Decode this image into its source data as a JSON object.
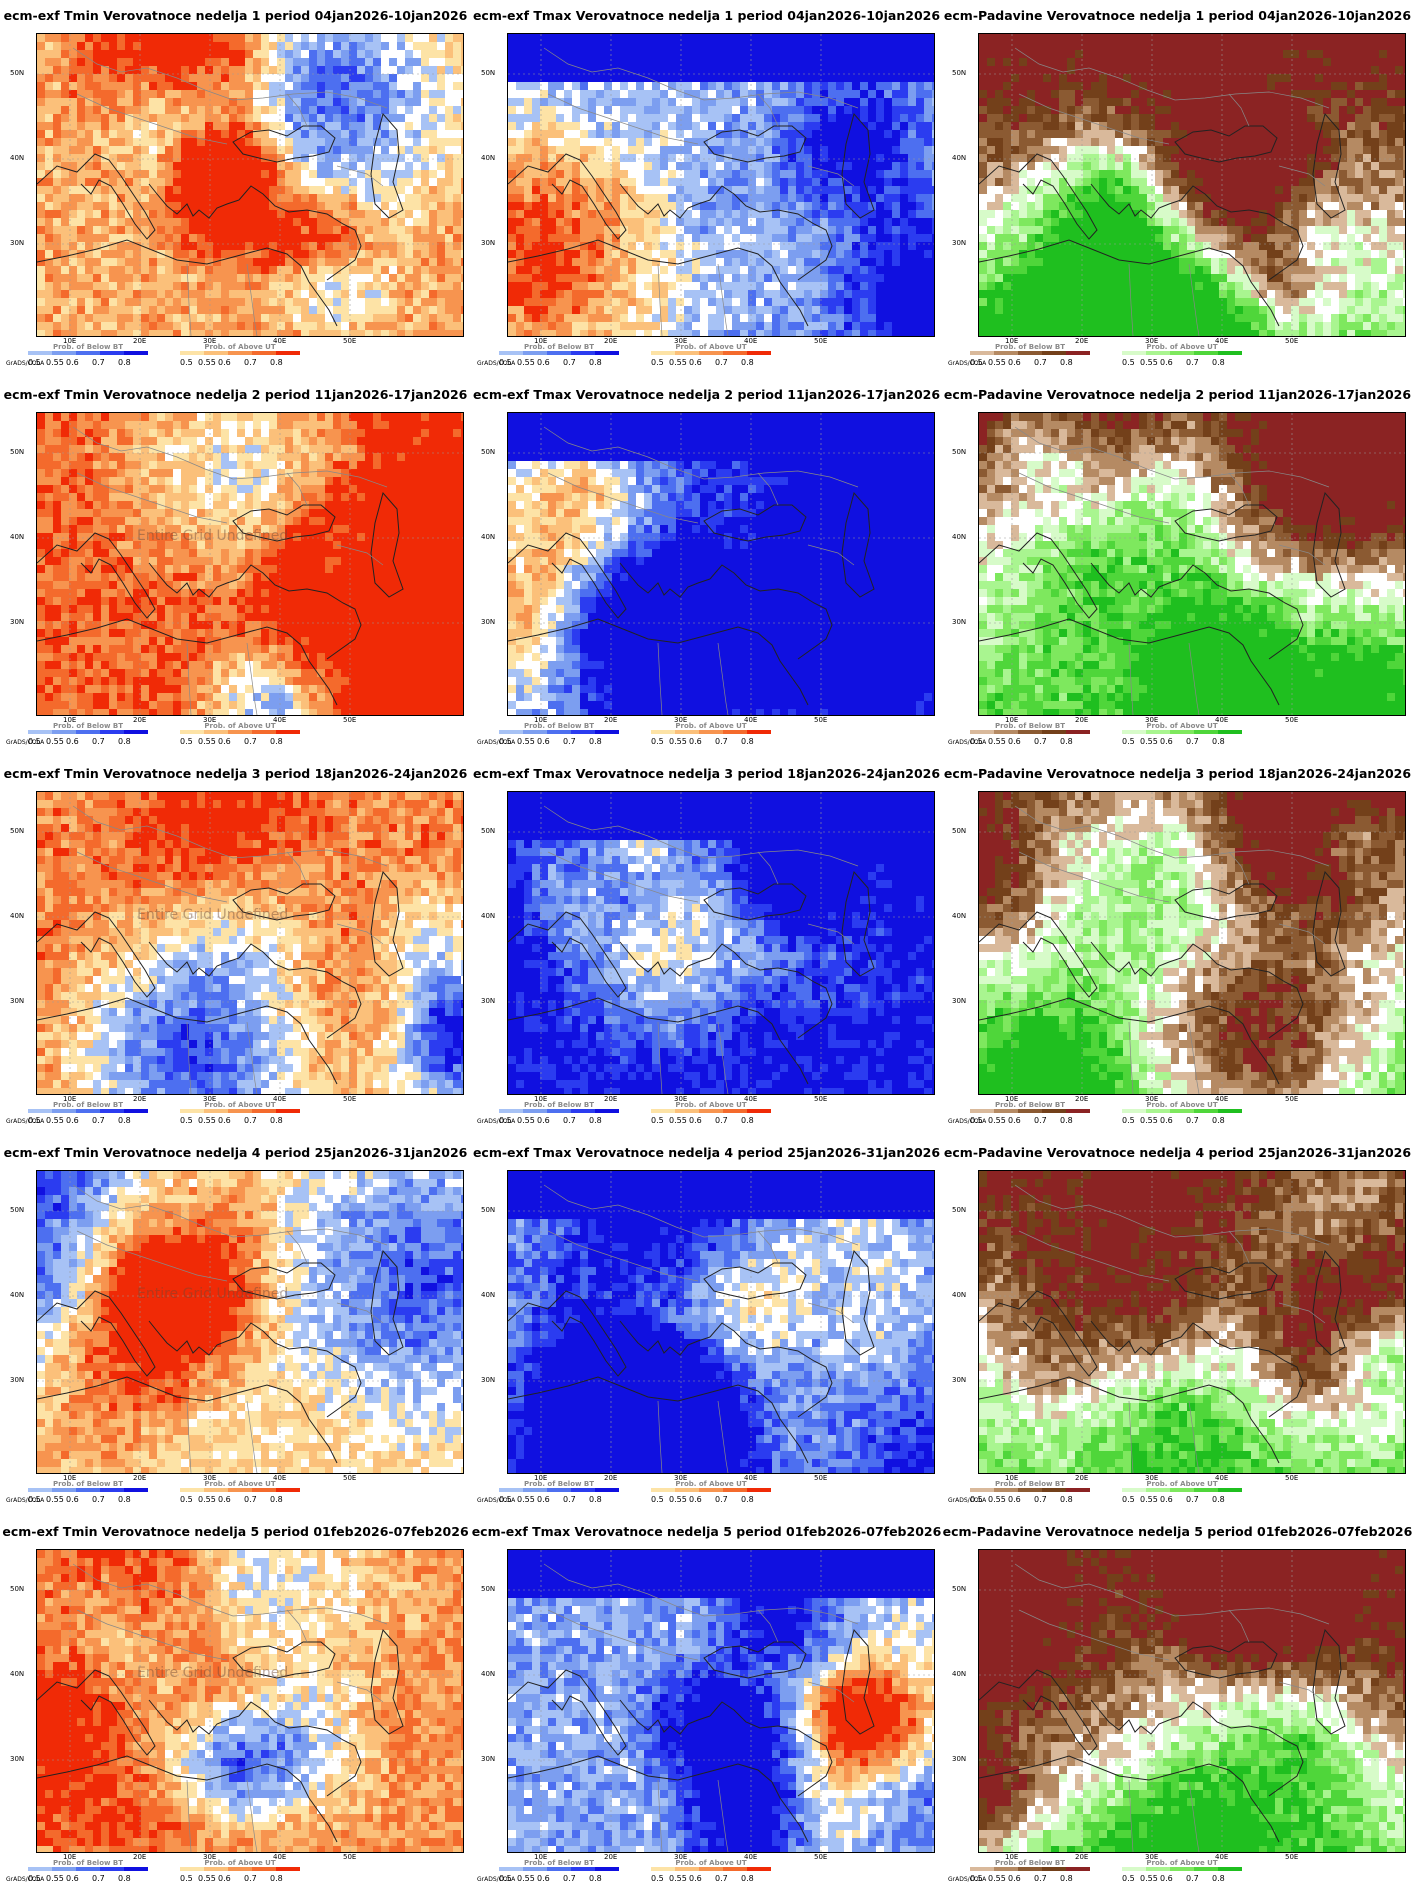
{
  "grid": {
    "rows": 5,
    "cols": 3
  },
  "undefined_note": "Entire Grid Undefined",
  "axes": {
    "lat_labels": [
      "50N",
      "40N",
      "30N"
    ],
    "lon_labels": [
      "10E",
      "20E",
      "30E",
      "40E",
      "50E"
    ]
  },
  "legend_common": {
    "credit": "GrADS/COLA",
    "ticks": [
      "0.5",
      "0.55",
      "0.6",
      "0.7",
      "0.8"
    ]
  },
  "variables": [
    {
      "key": "tmin",
      "prefix": "ecm-exf Tmin",
      "below_label": "Prob. of Below BT",
      "above_label": "Prob. of Above UT",
      "below_colors": [
        "#a7c2f5",
        "#7c9ef0",
        "#4d6ff0",
        "#2b3cf0",
        "#1010e0"
      ],
      "above_colors": [
        "#fde3a6",
        "#fbc07a",
        "#f7944f",
        "#f46a2c",
        "#f02a06"
      ]
    },
    {
      "key": "tmax",
      "prefix": "ecm-exf Tmax",
      "below_label": "Prob. of Below BT",
      "above_label": "Prob. of Above UT",
      "below_colors": [
        "#a7c2f5",
        "#7c9ef0",
        "#4d6ff0",
        "#2b3cf0",
        "#1010e0"
      ],
      "above_colors": [
        "#fde3a6",
        "#fbc07a",
        "#f7944f",
        "#f46a2c",
        "#f02a06"
      ]
    },
    {
      "key": "precip",
      "prefix": "ecm-Padavine",
      "below_label": "Prob. of Below BT",
      "above_label": "Prob. of Above UT",
      "below_colors": [
        "#d9b99b",
        "#b58a63",
        "#8b5a32",
        "#73401a",
        "#8b2323"
      ],
      "above_colors": [
        "#d7fbc9",
        "#a9f590",
        "#7ee85e",
        "#4fd63a",
        "#1fbf1f"
      ]
    }
  ],
  "weeks": [
    {
      "label": "Verovatnoce nedelja 1 period 04jan2026-10jan2026"
    },
    {
      "label": "Verovatnoce nedelja 2 period 11jan2026-17jan2026"
    },
    {
      "label": "Verovatnoce nedelja 3 period 18jan2026-24jan2026"
    },
    {
      "label": "Verovatnoce nedelja 4 period 25jan2026-31jan2026"
    },
    {
      "label": "Verovatnoce nedelja 5 period 01feb2026-07feb2026"
    }
  ],
  "panels": [
    {
      "row": 0,
      "col": 0,
      "title": "ecm-exf Tmin Verovatnoce nedelja 1 period 04jan2026-10jan2026",
      "base": 0.72,
      "undefined": false
    },
    {
      "row": 0,
      "col": 1,
      "title": "ecm-exf Tmax Verovatnoce nedelja 1 period 04jan2026-10jan2026",
      "base": 0.35,
      "undefined": false
    },
    {
      "row": 0,
      "col": 2,
      "title": "ecm-Padavine Verovatnoce nedelja 1 period 04jan2026-10jan2026",
      "base": 0.7,
      "undefined": false
    },
    {
      "row": 1,
      "col": 0,
      "title": "ecm-exf Tmin Verovatnoce nedelja 2 period 11jan2026-17jan2026",
      "base": 0.85,
      "undefined": true
    },
    {
      "row": 1,
      "col": 1,
      "title": "ecm-exf Tmax Verovatnoce nedelja 2 period 11jan2026-17jan2026",
      "base": 0.1,
      "undefined": false
    },
    {
      "row": 1,
      "col": 2,
      "title": "ecm-Padavine Verovatnoce nedelja 2 period 11jan2026-17jan2026",
      "base": 0.55,
      "undefined": false
    },
    {
      "row": 2,
      "col": 0,
      "title": "ecm-exf Tmin Verovatnoce nedelja 3 period 18jan2026-24jan2026",
      "base": 0.8,
      "undefined": true
    },
    {
      "row": 2,
      "col": 1,
      "title": "ecm-exf Tmax Verovatnoce nedelja 3 period 18jan2026-24jan2026",
      "base": 0.05,
      "undefined": false
    },
    {
      "row": 2,
      "col": 2,
      "title": "ecm-Padavine Verovatnoce nedelja 3 period 18jan2026-24jan2026",
      "base": 0.55,
      "undefined": false
    },
    {
      "row": 3,
      "col": 0,
      "title": "ecm-exf Tmin Verovatnoce nedelja 4 period 25jan2026-31jan2026",
      "base": 0.6,
      "undefined": true
    },
    {
      "row": 3,
      "col": 1,
      "title": "ecm-exf Tmax Verovatnoce nedelja 4 period 25jan2026-31jan2026",
      "base": 0.3,
      "undefined": false
    },
    {
      "row": 3,
      "col": 2,
      "title": "ecm-Padavine Verovatnoce nedelja 4 period 25jan2026-31jan2026",
      "base": 0.65,
      "undefined": false
    },
    {
      "row": 4,
      "col": 0,
      "title": "ecm-exf Tmin Verovatnoce nedelja 5 period 01feb2026-07feb2026",
      "base": 0.78,
      "undefined": true
    },
    {
      "row": 4,
      "col": 1,
      "title": "ecm-exf Tmax Verovatnoce nedelja 5 period 01feb2026-07feb2026",
      "base": 0.35,
      "undefined": false
    },
    {
      "row": 4,
      "col": 2,
      "title": "ecm-Padavine Verovatnoce nedelja 5 period 01feb2026-07feb2026",
      "base": 0.6,
      "undefined": false
    }
  ]
}
